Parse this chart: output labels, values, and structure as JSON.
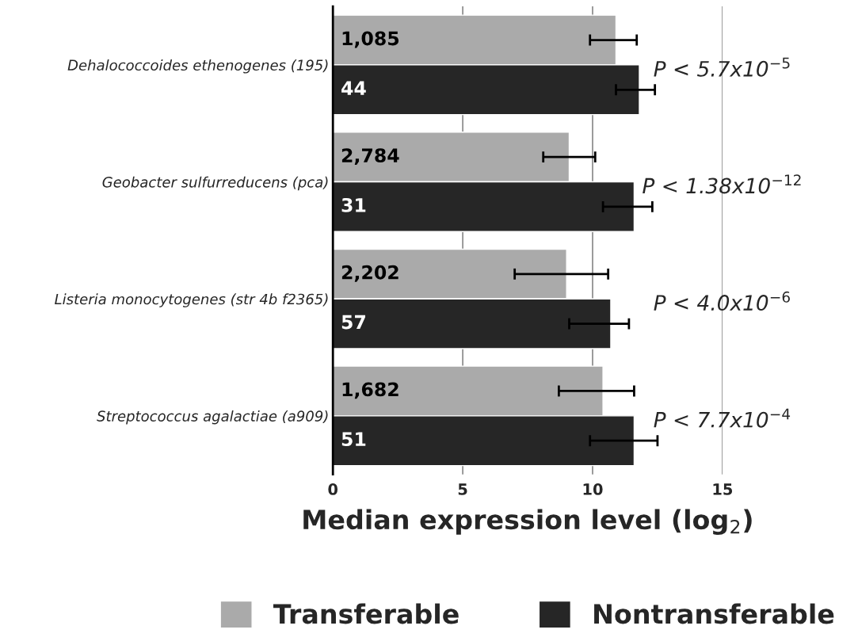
{
  "chart_data": {
    "type": "bar",
    "orientation": "horizontal",
    "xlabel": "Median expression level (log$_{2}$)",
    "categories": [
      "Dehalococcoides ethenogenes (195)",
      "Geobacter sulfurreducens (pca)",
      "Listeria monocytogenes (str 4b f2365)",
      "Streptococcus agalactiae (a909)"
    ],
    "series": [
      {
        "name": "Transferable",
        "color": "#aaaaaa",
        "values": [
          10.9,
          9.1,
          9.0,
          10.4
        ],
        "errors": [
          [
            9.9,
            11.7
          ],
          [
            8.1,
            10.1
          ],
          [
            7.0,
            10.6
          ],
          [
            8.7,
            11.6
          ]
        ]
      },
      {
        "name": "Nontransferable",
        "color": "#262626",
        "values": [
          11.8,
          11.6,
          10.7,
          11.6
        ],
        "errors": [
          [
            10.9,
            12.4
          ],
          [
            10.4,
            12.3
          ],
          [
            9.1,
            11.4
          ],
          [
            9.9,
            12.5
          ]
        ]
      }
    ],
    "xlim": [
      0,
      15
    ],
    "xticks": [
      0,
      5,
      10,
      15
    ],
    "grid": "x",
    "legend": "bottom",
    "annotations": [
      "1,085",
      "44",
      "P < 5.7x10$^{−5}$",
      "2,784",
      "31",
      "P < 1.38x10$^{−12}$",
      "2,202",
      "57",
      "P < 4.0x10$^{−6}$",
      "1,682",
      "51",
      "P < 7.7x10$^{−4}$"
    ]
  }
}
